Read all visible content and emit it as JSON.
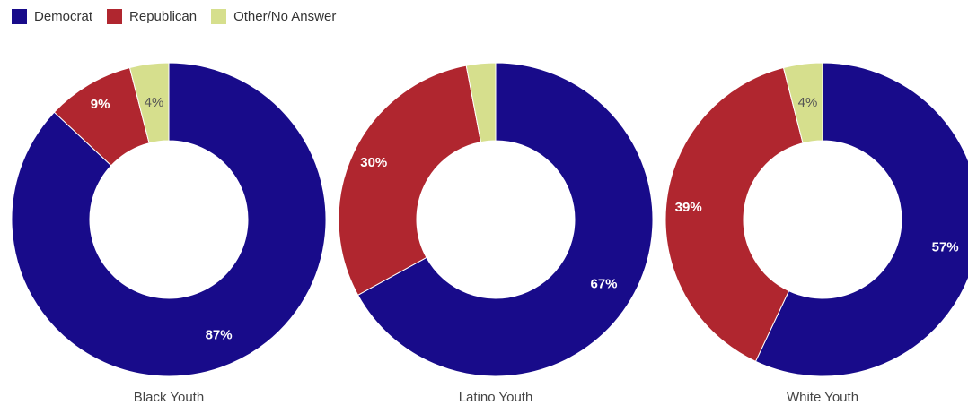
{
  "legend": [
    {
      "label": "Democrat",
      "color": "#180b8a"
    },
    {
      "label": "Republican",
      "color": "#b0262f"
    },
    {
      "label": "Other/No Answer",
      "color": "#d6df8d"
    }
  ],
  "chart_data": [
    {
      "type": "pie",
      "title": "Black Youth",
      "categories": [
        "Democrat",
        "Republican",
        "Other/No Answer"
      ],
      "values": [
        87,
        9,
        4
      ],
      "labels": [
        "87%",
        "9%",
        "4%"
      ]
    },
    {
      "type": "pie",
      "title": "Latino Youth",
      "categories": [
        "Democrat",
        "Republican",
        "Other/No Answer"
      ],
      "values": [
        67,
        30,
        3
      ],
      "labels": [
        "67%",
        "30%",
        ""
      ]
    },
    {
      "type": "pie",
      "title": "White Youth",
      "categories": [
        "Democrat",
        "Republican",
        "Other/No Answer"
      ],
      "values": [
        57,
        39,
        4
      ],
      "labels": [
        "57%",
        "39%",
        "4%"
      ]
    }
  ]
}
